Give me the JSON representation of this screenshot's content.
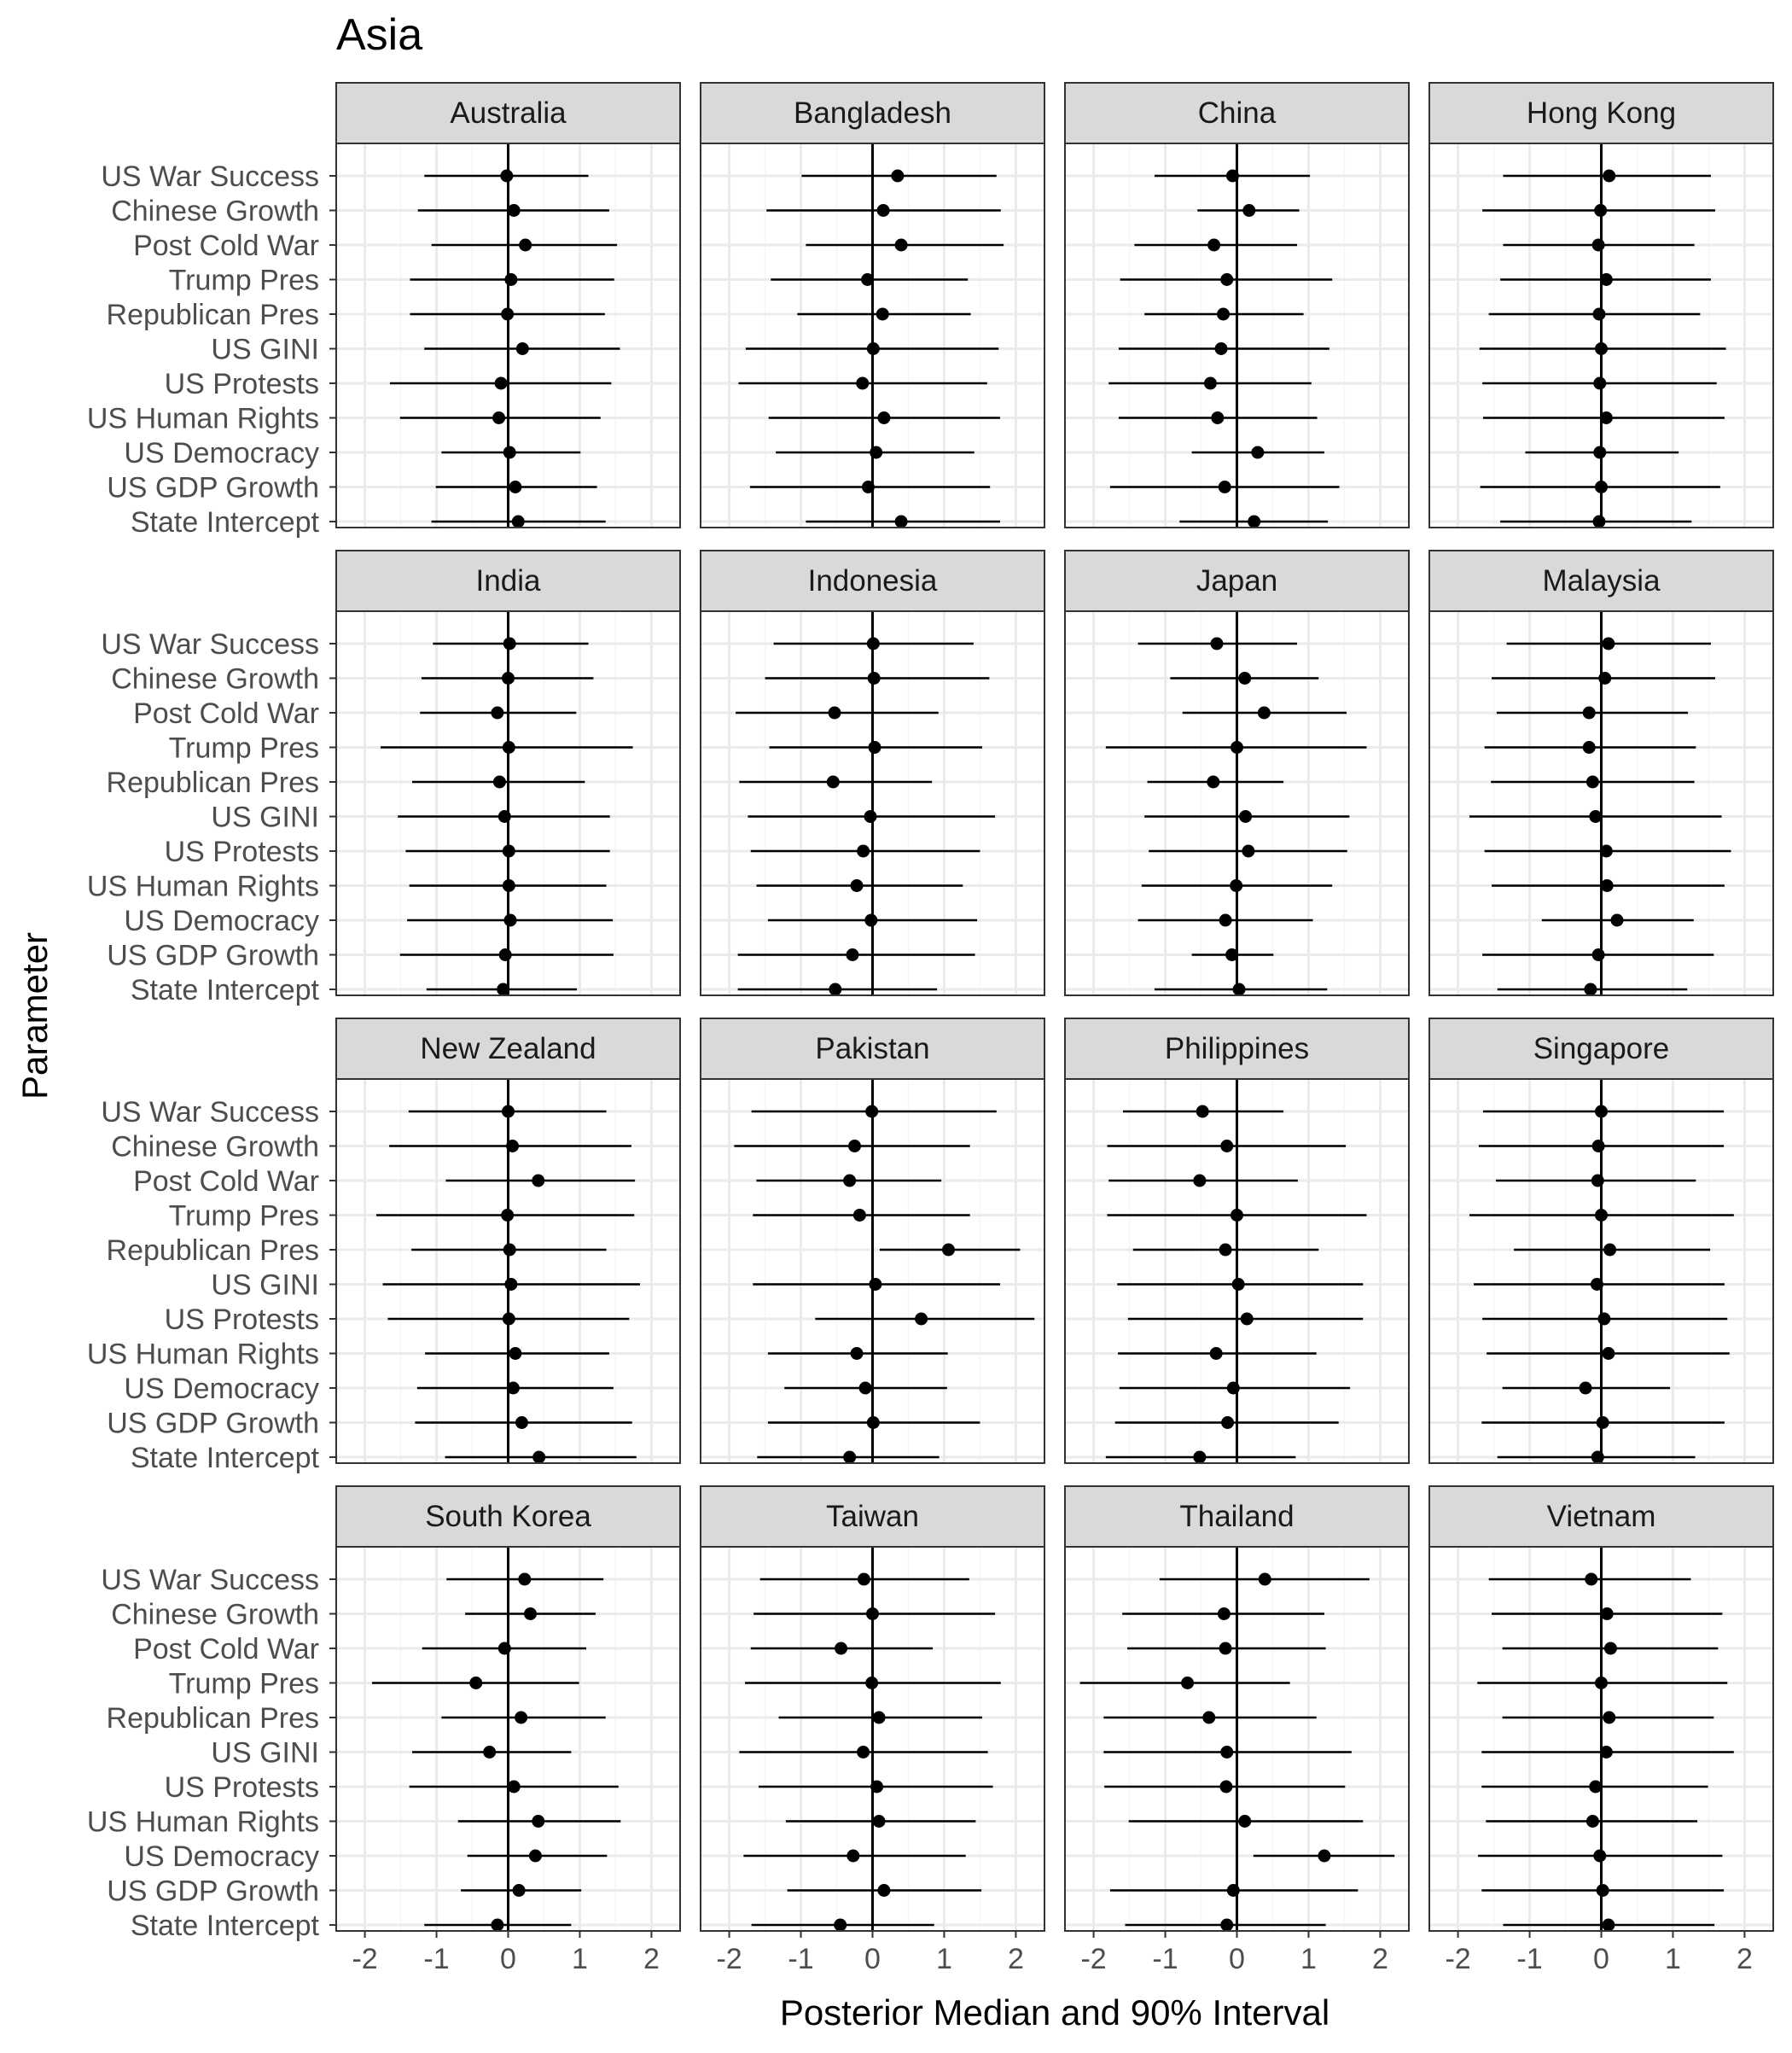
{
  "chart_data": {
    "type": "scatter",
    "title": "Asia",
    "xlabel": "Posterior Median and 90% Interval",
    "ylabel": "Parameter",
    "xlim": [
      -2.4,
      2.4
    ],
    "x_ticks": [
      -2,
      -1,
      0,
      1,
      2
    ],
    "x_tick_labels": [
      "-2",
      "-1",
      "0",
      "1",
      "2"
    ],
    "reference_line_x": 0,
    "grid": true,
    "facet_layout": {
      "rows": 4,
      "cols": 4
    },
    "parameters": [
      "US War Success",
      "Chinese Growth",
      "Post Cold War",
      "Trump Pres",
      "Republican Pres",
      "US GINI",
      "US Protests",
      "US Human Rights",
      "US Democracy",
      "US GDP Growth",
      "State Intercept"
    ],
    "value_fields": [
      "median",
      "lower",
      "upper"
    ],
    "facets": [
      {
        "name": "Australia",
        "values": [
          [
            -0.02,
            -1.17,
            1.12
          ],
          [
            0.08,
            -1.26,
            1.41
          ],
          [
            0.24,
            -1.07,
            1.52
          ],
          [
            0.04,
            -1.37,
            1.48
          ],
          [
            -0.01,
            -1.37,
            1.35
          ],
          [
            0.2,
            -1.17,
            1.56
          ],
          [
            -0.1,
            -1.65,
            1.44
          ],
          [
            -0.13,
            -1.51,
            1.29
          ],
          [
            0.02,
            -0.93,
            1.01
          ],
          [
            0.1,
            -1.01,
            1.24
          ],
          [
            0.14,
            -1.07,
            1.36
          ]
        ]
      },
      {
        "name": "Bangladesh",
        "values": [
          [
            0.35,
            -0.99,
            1.73
          ],
          [
            0.15,
            -1.48,
            1.79
          ],
          [
            0.4,
            -0.93,
            1.83
          ],
          [
            -0.07,
            -1.42,
            1.33
          ],
          [
            0.14,
            -1.05,
            1.37
          ],
          [
            0.01,
            -1.77,
            1.76
          ],
          [
            -0.14,
            -1.87,
            1.6
          ],
          [
            0.16,
            -1.45,
            1.78
          ],
          [
            0.05,
            -1.35,
            1.42
          ],
          [
            -0.06,
            -1.71,
            1.64
          ],
          [
            0.4,
            -0.93,
            1.78
          ]
        ]
      },
      {
        "name": "China",
        "values": [
          [
            -0.06,
            -1.15,
            1.02
          ],
          [
            0.17,
            -0.55,
            0.87
          ],
          [
            -0.32,
            -1.43,
            0.84
          ],
          [
            -0.14,
            -1.63,
            1.33
          ],
          [
            -0.19,
            -1.29,
            0.93
          ],
          [
            -0.22,
            -1.65,
            1.29
          ],
          [
            -0.37,
            -1.79,
            1.04
          ],
          [
            -0.27,
            -1.65,
            1.12
          ],
          [
            0.29,
            -0.63,
            1.22
          ],
          [
            -0.17,
            -1.77,
            1.43
          ],
          [
            0.24,
            -0.8,
            1.27
          ]
        ]
      },
      {
        "name": "Hong Kong",
        "values": [
          [
            0.11,
            -1.37,
            1.53
          ],
          [
            -0.01,
            -1.66,
            1.59
          ],
          [
            -0.04,
            -1.37,
            1.3
          ],
          [
            0.07,
            -1.41,
            1.53
          ],
          [
            -0.03,
            -1.57,
            1.38
          ],
          [
            0.0,
            -1.7,
            1.74
          ],
          [
            -0.02,
            -1.66,
            1.61
          ],
          [
            0.07,
            -1.65,
            1.72
          ],
          [
            -0.02,
            -1.06,
            1.08
          ],
          [
            0.0,
            -1.69,
            1.66
          ],
          [
            -0.03,
            -1.41,
            1.26
          ]
        ]
      },
      {
        "name": "India",
        "values": [
          [
            0.02,
            -1.05,
            1.12
          ],
          [
            0.0,
            -1.21,
            1.19
          ],
          [
            -0.15,
            -1.23,
            0.95
          ],
          [
            0.01,
            -1.78,
            1.74
          ],
          [
            -0.12,
            -1.34,
            1.07
          ],
          [
            -0.05,
            -1.54,
            1.42
          ],
          [
            0.01,
            -1.43,
            1.42
          ],
          [
            0.01,
            -1.38,
            1.37
          ],
          [
            0.03,
            -1.41,
            1.46
          ],
          [
            -0.04,
            -1.51,
            1.47
          ],
          [
            -0.07,
            -1.14,
            0.96
          ]
        ]
      },
      {
        "name": "Indonesia",
        "values": [
          [
            0.01,
            -1.38,
            1.41
          ],
          [
            0.02,
            -1.5,
            1.63
          ],
          [
            -0.53,
            -1.91,
            0.92
          ],
          [
            0.03,
            -1.44,
            1.53
          ],
          [
            -0.55,
            -1.86,
            0.83
          ],
          [
            -0.03,
            -1.74,
            1.71
          ],
          [
            -0.13,
            -1.7,
            1.5
          ],
          [
            -0.22,
            -1.62,
            1.26
          ],
          [
            -0.02,
            -1.46,
            1.46
          ],
          [
            -0.28,
            -1.88,
            1.43
          ],
          [
            -0.52,
            -1.88,
            0.9
          ]
        ]
      },
      {
        "name": "Japan",
        "values": [
          [
            -0.28,
            -1.38,
            0.84
          ],
          [
            0.11,
            -0.93,
            1.14
          ],
          [
            0.38,
            -0.76,
            1.53
          ],
          [
            0.0,
            -1.83,
            1.81
          ],
          [
            -0.33,
            -1.25,
            0.65
          ],
          [
            0.12,
            -1.29,
            1.57
          ],
          [
            0.16,
            -1.23,
            1.54
          ],
          [
            -0.01,
            -1.33,
            1.33
          ],
          [
            -0.16,
            -1.38,
            1.06
          ],
          [
            -0.07,
            -0.63,
            0.51
          ],
          [
            0.03,
            -1.15,
            1.26
          ]
        ]
      },
      {
        "name": "Malaysia",
        "values": [
          [
            0.1,
            -1.32,
            1.53
          ],
          [
            0.05,
            -1.53,
            1.59
          ],
          [
            -0.17,
            -1.46,
            1.21
          ],
          [
            -0.17,
            -1.63,
            1.32
          ],
          [
            -0.12,
            -1.54,
            1.3
          ],
          [
            -0.08,
            -1.84,
            1.68
          ],
          [
            0.07,
            -1.63,
            1.81
          ],
          [
            0.08,
            -1.53,
            1.72
          ],
          [
            0.22,
            -0.83,
            1.29
          ],
          [
            -0.04,
            -1.66,
            1.57
          ],
          [
            -0.15,
            -1.45,
            1.2
          ]
        ]
      },
      {
        "name": "New Zealand",
        "values": [
          [
            0.0,
            -1.39,
            1.37
          ],
          [
            0.06,
            -1.66,
            1.72
          ],
          [
            0.42,
            -0.87,
            1.77
          ],
          [
            -0.01,
            -1.84,
            1.76
          ],
          [
            0.02,
            -1.35,
            1.37
          ],
          [
            0.04,
            -1.75,
            1.84
          ],
          [
            0.01,
            -1.68,
            1.69
          ],
          [
            0.1,
            -1.16,
            1.41
          ],
          [
            0.07,
            -1.27,
            1.47
          ],
          [
            0.19,
            -1.3,
            1.73
          ],
          [
            0.43,
            -0.88,
            1.79
          ]
        ]
      },
      {
        "name": "Pakistan",
        "values": [
          [
            -0.01,
            -1.69,
            1.73
          ],
          [
            -0.25,
            -1.93,
            1.36
          ],
          [
            -0.32,
            -1.62,
            0.96
          ],
          [
            -0.18,
            -1.67,
            1.36
          ],
          [
            1.06,
            0.1,
            2.06
          ],
          [
            0.04,
            -1.67,
            1.78
          ],
          [
            0.68,
            -0.8,
            2.26
          ],
          [
            -0.22,
            -1.46,
            1.05
          ],
          [
            -0.1,
            -1.23,
            1.04
          ],
          [
            0.01,
            -1.46,
            1.5
          ],
          [
            -0.32,
            -1.61,
            0.93
          ]
        ]
      },
      {
        "name": "Philippines",
        "values": [
          [
            -0.48,
            -1.59,
            0.65
          ],
          [
            -0.14,
            -1.81,
            1.52
          ],
          [
            -0.52,
            -1.79,
            0.85
          ],
          [
            0.0,
            -1.81,
            1.81
          ],
          [
            -0.16,
            -1.45,
            1.14
          ],
          [
            0.02,
            -1.67,
            1.76
          ],
          [
            0.14,
            -1.52,
            1.76
          ],
          [
            -0.29,
            -1.66,
            1.11
          ],
          [
            -0.05,
            -1.64,
            1.58
          ],
          [
            -0.13,
            -1.7,
            1.42
          ],
          [
            -0.52,
            -1.83,
            0.82
          ]
        ]
      },
      {
        "name": "Singapore",
        "values": [
          [
            0.0,
            -1.65,
            1.71
          ],
          [
            -0.04,
            -1.71,
            1.71
          ],
          [
            -0.05,
            -1.47,
            1.32
          ],
          [
            0.0,
            -1.84,
            1.85
          ],
          [
            0.12,
            -1.22,
            1.52
          ],
          [
            -0.06,
            -1.78,
            1.72
          ],
          [
            0.04,
            -1.66,
            1.76
          ],
          [
            0.1,
            -1.6,
            1.79
          ],
          [
            -0.22,
            -1.38,
            0.96
          ],
          [
            0.02,
            -1.67,
            1.72
          ],
          [
            -0.05,
            -1.45,
            1.31
          ]
        ]
      },
      {
        "name": "South Korea",
        "values": [
          [
            0.23,
            -0.86,
            1.33
          ],
          [
            0.31,
            -0.6,
            1.22
          ],
          [
            -0.05,
            -1.2,
            1.09
          ],
          [
            -0.45,
            -1.9,
            0.99
          ],
          [
            0.18,
            -0.93,
            1.36
          ],
          [
            -0.26,
            -1.34,
            0.88
          ],
          [
            0.08,
            -1.38,
            1.54
          ],
          [
            0.42,
            -0.7,
            1.57
          ],
          [
            0.38,
            -0.57,
            1.38
          ],
          [
            0.15,
            -0.66,
            1.02
          ],
          [
            -0.15,
            -1.17,
            0.88
          ]
        ]
      },
      {
        "name": "Taiwan",
        "values": [
          [
            -0.12,
            -1.57,
            1.35
          ],
          [
            0.0,
            -1.66,
            1.71
          ],
          [
            -0.44,
            -1.7,
            0.84
          ],
          [
            -0.01,
            -1.78,
            1.79
          ],
          [
            0.09,
            -1.31,
            1.53
          ],
          [
            -0.13,
            -1.86,
            1.61
          ],
          [
            0.06,
            -1.59,
            1.68
          ],
          [
            0.09,
            -1.21,
            1.44
          ],
          [
            -0.27,
            -1.8,
            1.3
          ],
          [
            0.16,
            -1.19,
            1.52
          ],
          [
            -0.45,
            -1.69,
            0.86
          ]
        ]
      },
      {
        "name": "Thailand",
        "values": [
          [
            0.39,
            -1.08,
            1.85
          ],
          [
            -0.18,
            -1.6,
            1.22
          ],
          [
            -0.16,
            -1.53,
            1.24
          ],
          [
            -0.69,
            -2.19,
            0.74
          ],
          [
            -0.39,
            -1.86,
            1.11
          ],
          [
            -0.14,
            -1.86,
            1.6
          ],
          [
            -0.15,
            -1.85,
            1.51
          ],
          [
            0.11,
            -1.51,
            1.76
          ],
          [
            1.22,
            0.23,
            2.2
          ],
          [
            -0.05,
            -1.77,
            1.69
          ],
          [
            -0.14,
            -1.56,
            1.24
          ]
        ]
      },
      {
        "name": "Vietnam",
        "values": [
          [
            -0.14,
            -1.57,
            1.25
          ],
          [
            0.08,
            -1.53,
            1.69
          ],
          [
            0.13,
            -1.38,
            1.63
          ],
          [
            0.0,
            -1.73,
            1.76
          ],
          [
            0.11,
            -1.38,
            1.57
          ],
          [
            0.07,
            -1.67,
            1.85
          ],
          [
            -0.08,
            -1.67,
            1.49
          ],
          [
            -0.12,
            -1.61,
            1.34
          ],
          [
            -0.02,
            -1.72,
            1.69
          ],
          [
            0.02,
            -1.67,
            1.71
          ],
          [
            0.1,
            -1.37,
            1.58
          ]
        ]
      }
    ],
    "colors": {
      "point": "#000000",
      "interval": "#000000",
      "strip_fill": "#d9d9d9",
      "strip_border": "#333333",
      "panel_border": "#333333",
      "grid_major": "#ebebeb",
      "grid_minor": "#f5f5f5",
      "axis_text": "#4d4d4d",
      "title_text": "#000000"
    }
  }
}
